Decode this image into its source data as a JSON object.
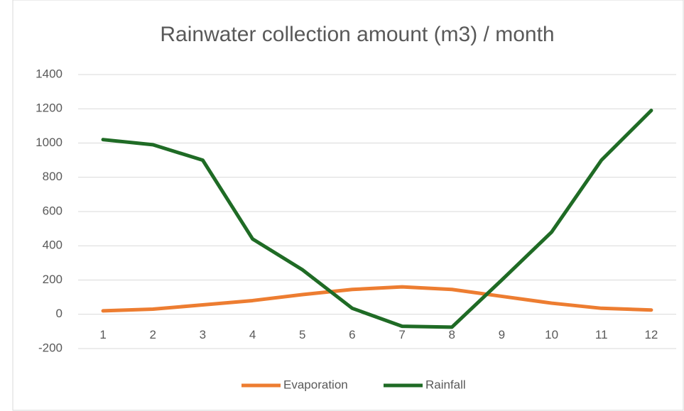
{
  "chart_data": {
    "type": "line",
    "title": "Rainwater collection amount (m3) / month",
    "categories": [
      "1",
      "2",
      "3",
      "4",
      "5",
      "6",
      "7",
      "8",
      "9",
      "10",
      "11",
      "12"
    ],
    "series": [
      {
        "name": "Evaporation",
        "color": "#ed7d31",
        "values": [
          20,
          30,
          55,
          80,
          115,
          145,
          160,
          145,
          105,
          65,
          35,
          25
        ]
      },
      {
        "name": "Rainfall",
        "color": "#1f6b25",
        "values": [
          1020,
          990,
          900,
          440,
          260,
          35,
          -70,
          -75,
          200,
          480,
          900,
          1190
        ]
      }
    ],
    "ylim": [
      -200,
      1400
    ],
    "yticks": [
      -200,
      0,
      200,
      400,
      600,
      800,
      1000,
      1200,
      1400
    ],
    "grid": true,
    "legend": "bottom"
  }
}
